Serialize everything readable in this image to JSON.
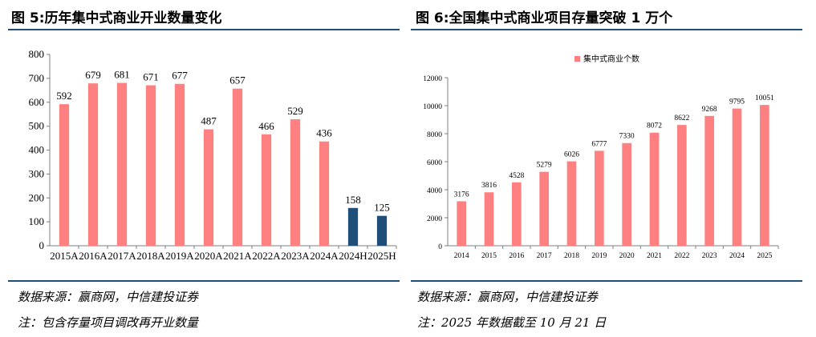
{
  "left": {
    "title": "图 5:历年集中式商业开业数量变化",
    "source": "数据来源：赢商网，中信建投证券",
    "note": "注：包含存量项目调改再开业数量"
  },
  "right": {
    "title": "图 6:全国集中式商业项目存量突破 1 万个",
    "source": "数据来源：赢商网，中信建投证券",
    "note": "注：2025 年数据截至 10 月 21 日"
  },
  "colors": {
    "actual": "#ff8080",
    "forecast": "#1f4e79",
    "rule": "#1f4e79"
  },
  "chart_data": [
    {
      "type": "bar",
      "title": "图 5:历年集中式商业开业数量变化",
      "categories": [
        "2015A",
        "2016A",
        "2017A",
        "2018A",
        "2019A",
        "2020A",
        "2021A",
        "2022A",
        "2023A",
        "2024A",
        "2024H",
        "2025H"
      ],
      "values": [
        592,
        679,
        681,
        671,
        677,
        487,
        657,
        466,
        529,
        436,
        158,
        125
      ],
      "series_type": [
        "actual",
        "actual",
        "actual",
        "actual",
        "actual",
        "actual",
        "actual",
        "actual",
        "actual",
        "actual",
        "forecast",
        "forecast"
      ],
      "ylim": [
        0,
        800
      ],
      "yticks": [
        0,
        100,
        200,
        300,
        400,
        500,
        600,
        700,
        800
      ],
      "xlabel": "",
      "ylabel": "",
      "grid": false,
      "legend": null
    },
    {
      "type": "bar",
      "title": "图 6:全国集中式商业项目存量突破 1 万个",
      "categories": [
        "2014",
        "2015",
        "2016",
        "2017",
        "2018",
        "2019",
        "2020",
        "2021",
        "2022",
        "2023",
        "2024",
        "2025"
      ],
      "series": [
        {
          "name": "集中式商业个数",
          "values": [
            3176,
            3816,
            4528,
            5279,
            6026,
            6777,
            7330,
            8072,
            8622,
            9268,
            9795,
            10051
          ]
        }
      ],
      "ylim": [
        0,
        12000
      ],
      "yticks": [
        0,
        2000,
        4000,
        6000,
        8000,
        10000,
        12000
      ],
      "xlabel": "",
      "ylabel": "",
      "grid": false,
      "legend": "top-center"
    }
  ]
}
